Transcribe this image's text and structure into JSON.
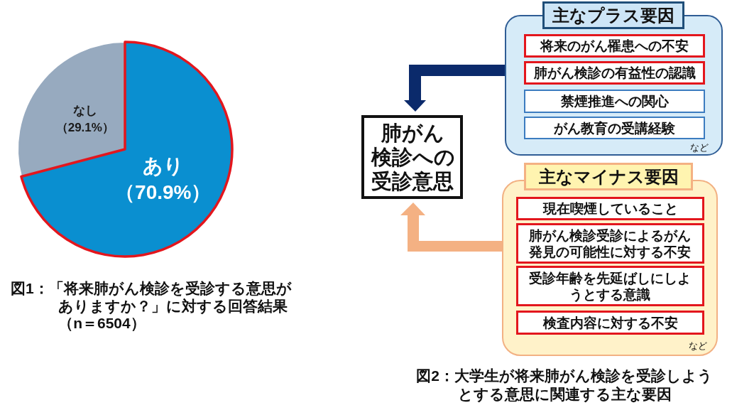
{
  "chart_data": [
    {
      "type": "pie",
      "categories": [
        "あり",
        "なし"
      ],
      "values": [
        70.9,
        29.1
      ],
      "colors": [
        "#0a8fd0",
        "#97aabf"
      ],
      "value_labels": [
        "（70.9%）",
        "（29.1%）"
      ],
      "annotations": [
        "図1：「将来肺がん検診を受診する意思がありますか？」に対する回答結果（n＝6504）"
      ]
    },
    {
      "type": "other",
      "annotations": [
        "主なプラス要因",
        "将来のがん罹患への不安",
        "肺がん検診の有益性の認識",
        "禁煙推進への関心",
        "がん教育の受講経験",
        "など",
        "主なマイナス要因",
        "現在喫煙していること",
        "肺がん検診受診によるがん発見の可能性に対する不安",
        "受診年齢を先延ばしにしようとする意識",
        "検査内容に対する不安",
        "など",
        "肺がん検診への受診意思",
        "図2：大学生が将来肺がん検診を受診しようとする意思に関連する主な要因"
      ]
    }
  ]
}
